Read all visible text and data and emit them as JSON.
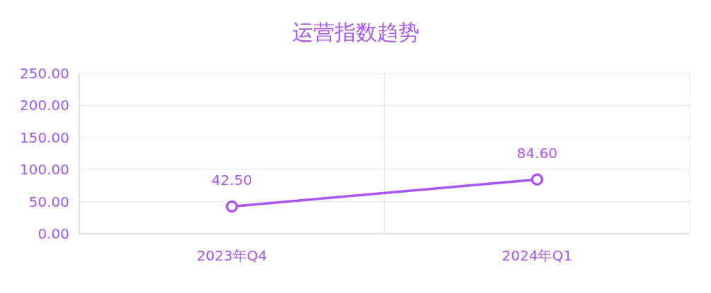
{
  "chart_data": {
    "type": "line",
    "title": "运营指数趋势",
    "categories": [
      "2023年Q4",
      "2024年Q1"
    ],
    "series": [
      {
        "color": "#a855f7",
        "values": [
          42.5,
          84.6
        ],
        "value_labels": [
          "42.50",
          "84.60"
        ]
      }
    ],
    "ylim": [
      0,
      250
    ],
    "yticks": [
      {
        "value": 0,
        "label": "0.00"
      },
      {
        "value": 50,
        "label": "50.00"
      },
      {
        "value": 100,
        "label": "100.00"
      },
      {
        "value": 150,
        "label": "150.00"
      },
      {
        "value": 200,
        "label": "200.00"
      },
      {
        "value": 250,
        "label": "250.00"
      }
    ],
    "grid": true,
    "marker": "circle",
    "line_style": "solid"
  }
}
